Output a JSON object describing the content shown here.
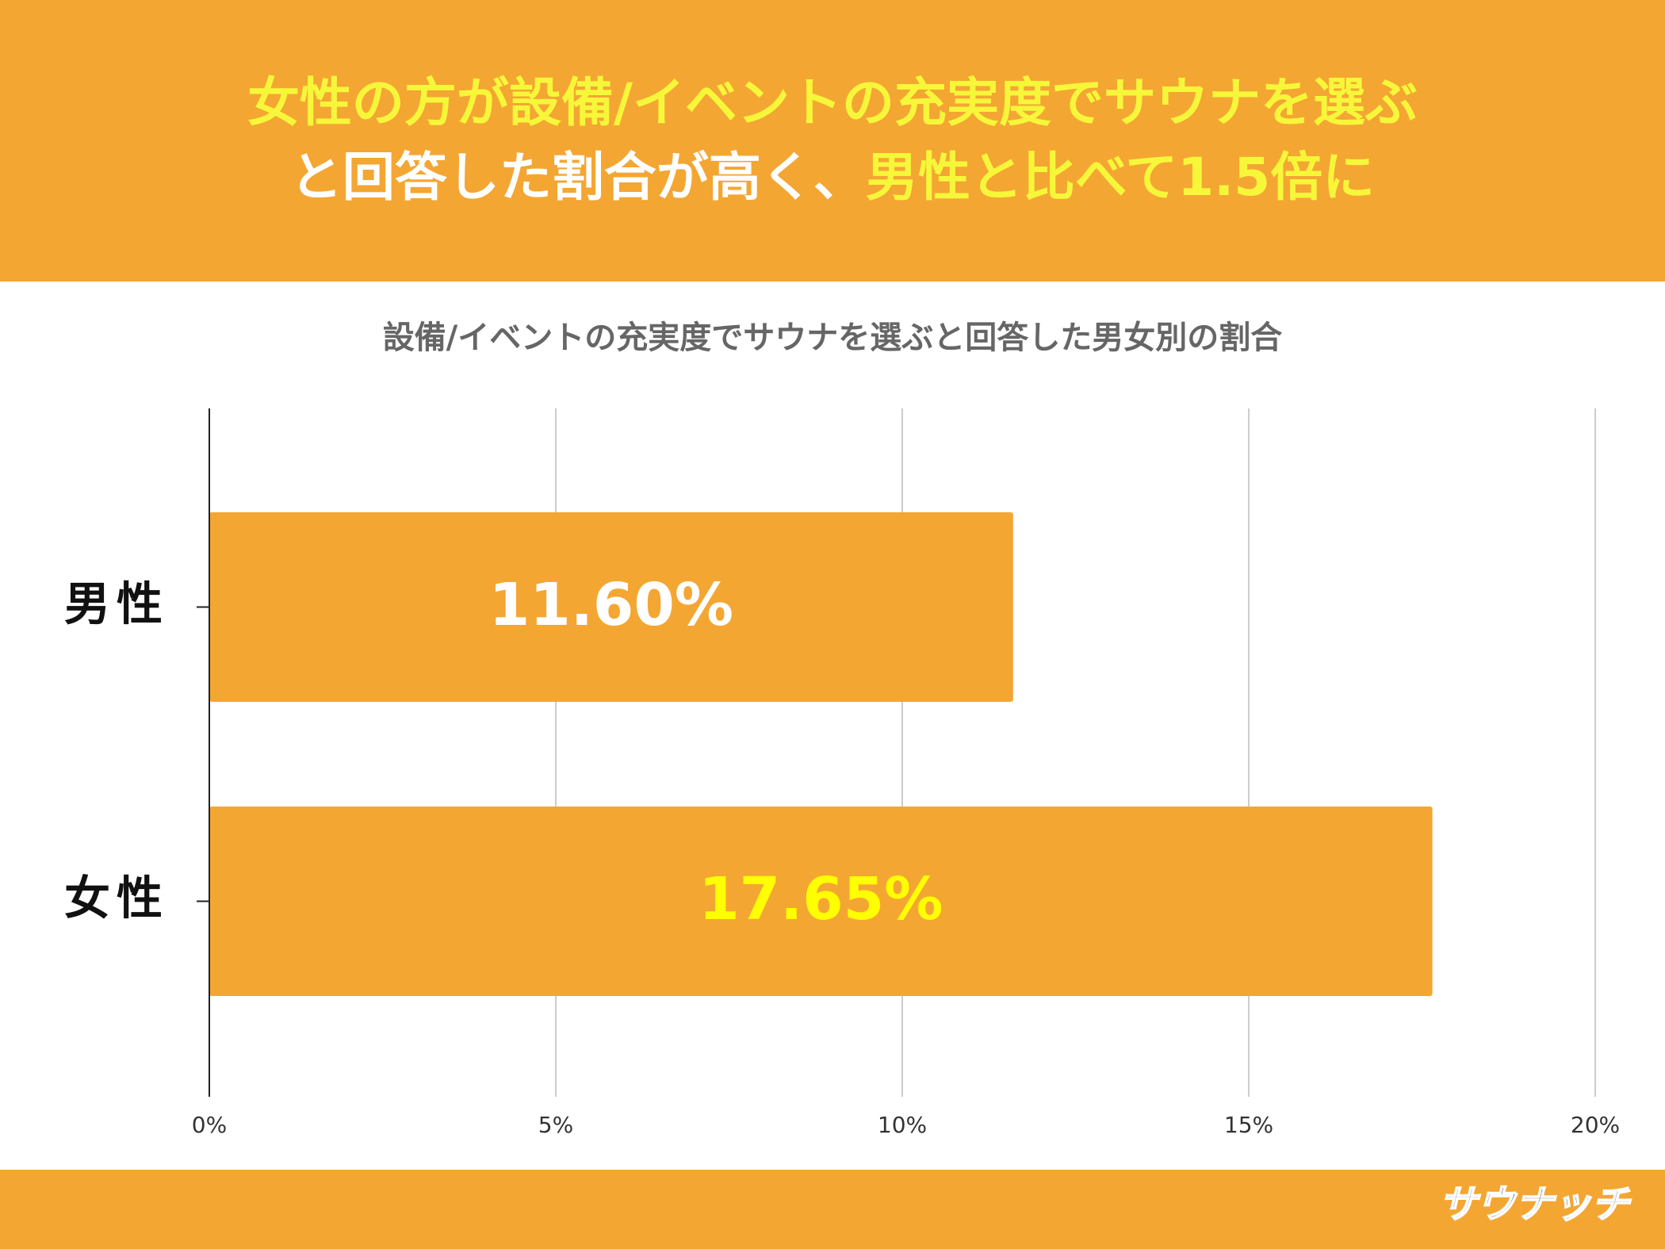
{
  "header": {
    "lines": [
      [
        {
          "text": "女性の方が設備/イベントの充実度でサウナを選ぶ",
          "color": "#f7f73a"
        }
      ],
      [
        {
          "text": "と回答した割合が高く、",
          "color": "#ffffff"
        },
        {
          "text": "男性と比べて1.5倍に",
          "color": "#f7f73a"
        }
      ]
    ]
  },
  "chart_data": {
    "type": "hbar",
    "title": "設備/イベントの充実度でサウナを選ぶと回答した男女別の割合",
    "categories": [
      "男性",
      "女性"
    ],
    "values": [
      11.6,
      17.65
    ],
    "value_labels": [
      "11.60%",
      "17.65%"
    ],
    "value_label_colors": [
      "#ffffff",
      "#ffff00"
    ],
    "color": "#f4a633",
    "xlim": [
      0,
      20
    ],
    "xticks": [
      {
        "value": 0,
        "label": "0%"
      },
      {
        "value": 5,
        "label": "5%"
      },
      {
        "value": 10,
        "label": "10%"
      },
      {
        "value": 15,
        "label": "15%"
      },
      {
        "value": 20,
        "label": "20%"
      }
    ],
    "grid": true
  },
  "footer": {
    "logo": "サウナッチ"
  }
}
